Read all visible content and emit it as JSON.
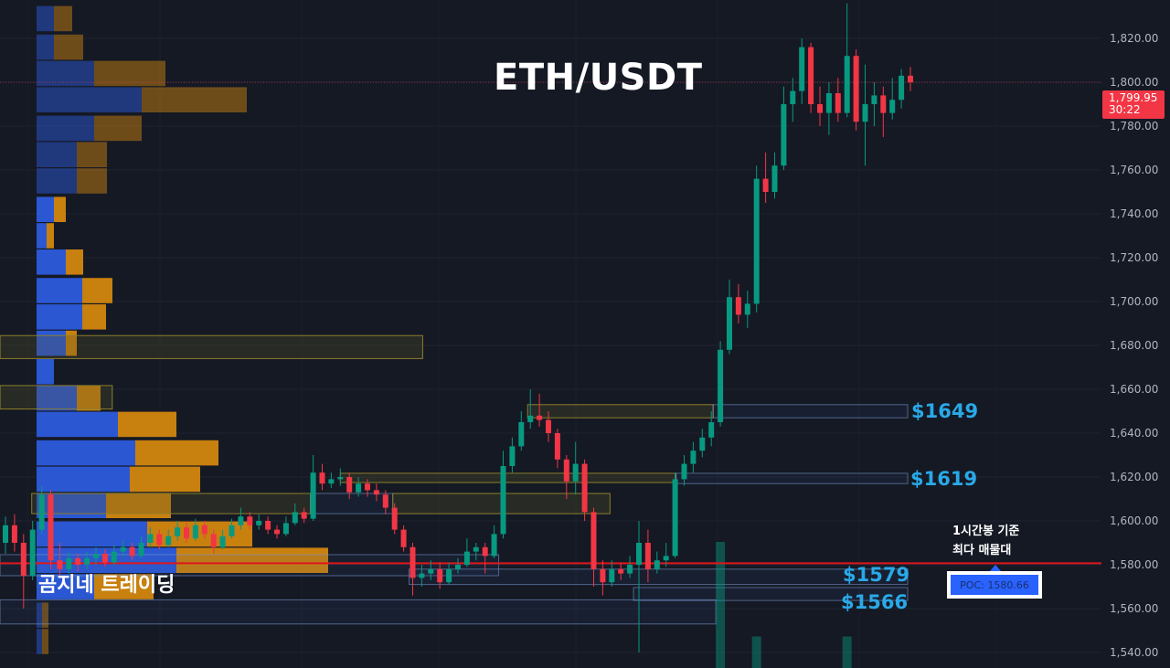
{
  "title": "ETH/USDT",
  "watermark": "곰지네 트레이딩",
  "note": {
    "line1": "1시간봉 기준",
    "line2": "최다 매물대"
  },
  "poc": {
    "label": "POC: 1580.66",
    "price": 1580.66
  },
  "current": {
    "price_label": "1,799.95",
    "countdown": "30:22",
    "price": 1799.95
  },
  "levels": {
    "l1649": "$1649",
    "l1619": "$1619",
    "l1579": "$1579",
    "l1566": "$1566"
  },
  "colors": {
    "up": "#089981",
    "down": "#f23645",
    "poc": "#e0161b",
    "level_text": "#29a9e8",
    "profile_buy": "#2b57d3",
    "profile_sell": "#c8800f",
    "background": "#151924"
  },
  "chart_data": {
    "type": "candlestick",
    "title": "ETH/USDT",
    "ylim": [
      1533,
      1838
    ],
    "y_ticks": [
      "1,540.00",
      "1,560.00",
      "1,580.00",
      "1,600.00",
      "1,620.00",
      "1,640.00",
      "1,660.00",
      "1,680.00",
      "1,700.00",
      "1,720.00",
      "1,740.00",
      "1,760.00",
      "1,780.00",
      "1,800.00",
      "1,820.00"
    ],
    "y_tick_values": [
      1540,
      1560,
      1580,
      1600,
      1620,
      1640,
      1660,
      1680,
      1700,
      1720,
      1740,
      1760,
      1780,
      1800,
      1820
    ],
    "grid": true,
    "ohlc": [
      [
        1590,
        1602,
        1585,
        1598
      ],
      [
        1598,
        1603,
        1586,
        1590
      ],
      [
        1590,
        1594,
        1560,
        1575
      ],
      [
        1575,
        1600,
        1573,
        1596
      ],
      [
        1596,
        1616,
        1594,
        1612
      ],
      [
        1612,
        1614,
        1578,
        1582
      ],
      [
        1582,
        1590,
        1575,
        1578
      ],
      [
        1578,
        1586,
        1576,
        1583
      ],
      [
        1583,
        1585,
        1577,
        1580
      ],
      [
        1580,
        1586,
        1578,
        1583
      ],
      [
        1583,
        1588,
        1580,
        1585
      ],
      [
        1585,
        1587,
        1579,
        1581
      ],
      [
        1581,
        1589,
        1580,
        1586
      ],
      [
        1586,
        1591,
        1584,
        1588
      ],
      [
        1588,
        1590,
        1582,
        1584
      ],
      [
        1584,
        1593,
        1583,
        1590
      ],
      [
        1590,
        1597,
        1588,
        1594
      ],
      [
        1594,
        1596,
        1587,
        1589
      ],
      [
        1589,
        1596,
        1588,
        1593
      ],
      [
        1593,
        1600,
        1591,
        1597
      ],
      [
        1597,
        1599,
        1590,
        1592
      ],
      [
        1592,
        1601,
        1591,
        1598
      ],
      [
        1598,
        1600,
        1592,
        1594
      ],
      [
        1594,
        1596,
        1585,
        1588
      ],
      [
        1588,
        1596,
        1587,
        1593
      ],
      [
        1593,
        1601,
        1592,
        1598
      ],
      [
        1598,
        1606,
        1596,
        1602
      ],
      [
        1602,
        1604,
        1596,
        1598
      ],
      [
        1598,
        1603,
        1596,
        1600
      ],
      [
        1600,
        1602,
        1594,
        1596
      ],
      [
        1596,
        1598,
        1592,
        1594
      ],
      [
        1594,
        1602,
        1593,
        1599
      ],
      [
        1599,
        1608,
        1598,
        1604
      ],
      [
        1604,
        1606,
        1599,
        1601
      ],
      [
        1601,
        1630,
        1600,
        1622
      ],
      [
        1622,
        1626,
        1614,
        1617
      ],
      [
        1617,
        1622,
        1615,
        1619
      ],
      [
        1619,
        1624,
        1616,
        1620
      ],
      [
        1620,
        1622,
        1610,
        1613
      ],
      [
        1613,
        1620,
        1611,
        1617
      ],
      [
        1617,
        1619,
        1611,
        1614
      ],
      [
        1614,
        1617,
        1609,
        1612
      ],
      [
        1612,
        1614,
        1603,
        1606
      ],
      [
        1606,
        1608,
        1594,
        1596
      ],
      [
        1596,
        1598,
        1586,
        1588
      ],
      [
        1588,
        1590,
        1566,
        1574
      ],
      [
        1574,
        1580,
        1570,
        1576
      ],
      [
        1576,
        1582,
        1573,
        1578
      ],
      [
        1578,
        1581,
        1569,
        1572
      ],
      [
        1572,
        1581,
        1571,
        1578
      ],
      [
        1578,
        1583,
        1576,
        1580
      ],
      [
        1580,
        1592,
        1579,
        1586
      ],
      [
        1586,
        1590,
        1582,
        1588
      ],
      [
        1588,
        1590,
        1576,
        1584
      ],
      [
        1584,
        1598,
        1583,
        1594
      ],
      [
        1594,
        1632,
        1592,
        1625
      ],
      [
        1625,
        1638,
        1622,
        1634
      ],
      [
        1634,
        1650,
        1632,
        1645
      ],
      [
        1645,
        1660,
        1642,
        1648
      ],
      [
        1648,
        1658,
        1643,
        1646
      ],
      [
        1646,
        1650,
        1636,
        1640
      ],
      [
        1640,
        1642,
        1624,
        1628
      ],
      [
        1628,
        1630,
        1610,
        1618
      ],
      [
        1618,
        1636,
        1612,
        1626
      ],
      [
        1626,
        1628,
        1600,
        1604
      ],
      [
        1604,
        1606,
        1570,
        1578
      ],
      [
        1578,
        1582,
        1566,
        1572
      ],
      [
        1572,
        1582,
        1570,
        1578
      ],
      [
        1578,
        1581,
        1573,
        1576
      ],
      [
        1576,
        1584,
        1574,
        1580
      ],
      [
        1580,
        1600,
        1540,
        1590
      ],
      [
        1590,
        1596,
        1572,
        1578
      ],
      [
        1578,
        1586,
        1576,
        1582
      ],
      [
        1582,
        1590,
        1579,
        1584
      ],
      [
        1584,
        1622,
        1583,
        1619
      ],
      [
        1619,
        1630,
        1616,
        1626
      ],
      [
        1626,
        1636,
        1622,
        1632
      ],
      [
        1632,
        1642,
        1629,
        1638
      ],
      [
        1638,
        1650,
        1634,
        1645
      ],
      [
        1645,
        1682,
        1643,
        1678
      ],
      [
        1678,
        1710,
        1676,
        1702
      ],
      [
        1702,
        1708,
        1690,
        1694
      ],
      [
        1694,
        1705,
        1688,
        1699
      ],
      [
        1699,
        1762,
        1695,
        1756
      ],
      [
        1756,
        1768,
        1745,
        1750
      ],
      [
        1750,
        1768,
        1747,
        1762
      ],
      [
        1762,
        1798,
        1760,
        1790
      ],
      [
        1790,
        1802,
        1782,
        1796
      ],
      [
        1796,
        1820,
        1790,
        1816
      ],
      [
        1816,
        1818,
        1786,
        1790
      ],
      [
        1790,
        1798,
        1780,
        1786
      ],
      [
        1786,
        1800,
        1776,
        1795
      ],
      [
        1795,
        1802,
        1782,
        1786
      ],
      [
        1786,
        1836,
        1784,
        1812
      ],
      [
        1812,
        1815,
        1778,
        1782
      ],
      [
        1782,
        1808,
        1762,
        1790
      ],
      [
        1790,
        1800,
        1780,
        1794
      ],
      [
        1794,
        1798,
        1775,
        1786
      ],
      [
        1786,
        1802,
        1783,
        1792
      ],
      [
        1792,
        1806,
        1788,
        1803
      ],
      [
        1803,
        1807,
        1796,
        1799.95
      ]
    ],
    "volume": [
      {
        "index": 79,
        "value": 1.0
      },
      {
        "index": 83,
        "value": 0.25
      },
      {
        "index": 93,
        "value": 0.25
      }
    ],
    "volume_profile": [
      {
        "price": 1829,
        "buy": 19,
        "sell": 20,
        "active": false
      },
      {
        "price": 1816,
        "buy": 19,
        "sell": 32,
        "active": false
      },
      {
        "price": 1804,
        "buy": 63,
        "sell": 78,
        "active": false
      },
      {
        "price": 1792,
        "buy": 115,
        "sell": 115,
        "active": false
      },
      {
        "price": 1779,
        "buy": 63,
        "sell": 52,
        "active": false
      },
      {
        "price": 1767,
        "buy": 44,
        "sell": 33,
        "active": false
      },
      {
        "price": 1755,
        "buy": 44,
        "sell": 33,
        "active": false
      },
      {
        "price": 1742,
        "buy": 19,
        "sell": 13,
        "active": true
      },
      {
        "price": 1730,
        "buy": 11,
        "sell": 8,
        "active": true
      },
      {
        "price": 1718,
        "buy": 32,
        "sell": 19,
        "active": true
      },
      {
        "price": 1705,
        "buy": 50,
        "sell": 33,
        "active": true
      },
      {
        "price": 1693,
        "buy": 50,
        "sell": 26,
        "active": true
      },
      {
        "price": 1681,
        "buy": 32,
        "sell": 12,
        "active": true
      },
      {
        "price": 1668,
        "buy": 19,
        "sell": 0,
        "active": true
      },
      {
        "price": 1656,
        "buy": 44,
        "sell": 26,
        "active": true
      },
      {
        "price": 1644,
        "buy": 89,
        "sell": 64,
        "active": true
      },
      {
        "price": 1631,
        "buy": 108,
        "sell": 91,
        "active": true
      },
      {
        "price": 1619,
        "buy": 102,
        "sell": 77,
        "active": true
      },
      {
        "price": 1607,
        "buy": 76,
        "sell": 71,
        "active": true
      },
      {
        "price": 1594,
        "buy": 121,
        "sell": 115,
        "active": true
      },
      {
        "price": 1582,
        "buy": 153,
        "sell": 166,
        "active": true
      },
      {
        "price": 1570,
        "buy": 63,
        "sell": 65,
        "active": true
      },
      {
        "price": 1557,
        "buy": 6,
        "sell": 7,
        "active": false
      },
      {
        "price": 1545,
        "buy": 6,
        "sell": 7,
        "active": false
      }
    ],
    "zones": [
      {
        "kind": "supply",
        "from": -0.6,
        "to": 46.1,
        "top": 1684.5,
        "bottom": 1674
      },
      {
        "kind": "supply",
        "from": -0.6,
        "to": 11.8,
        "top": 1661.7,
        "bottom": 1651
      },
      {
        "kind": "supply",
        "from": 57.7,
        "to": 78.2,
        "top": 1653,
        "bottom": 1647
      },
      {
        "kind": "level",
        "from": 78.2,
        "to": 99.7,
        "top": 1653,
        "bottom": 1647
      },
      {
        "kind": "supply",
        "from": 37,
        "to": 74.1,
        "top": 1621.7,
        "bottom": 1617.5
      },
      {
        "kind": "level",
        "from": 74.1,
        "to": 99.7,
        "top": 1621.7,
        "bottom": 1617
      },
      {
        "kind": "supply",
        "from": 2.9,
        "to": 33.7,
        "top": 1612.5,
        "bottom": 1603.3
      },
      {
        "kind": "level",
        "from": 33.7,
        "to": 42.8,
        "top": 1612.5,
        "bottom": 1603.3
      },
      {
        "kind": "supply",
        "from": 42.8,
        "to": 66.8,
        "top": 1612.5,
        "bottom": 1603.3
      },
      {
        "kind": "level",
        "from": -0.6,
        "to": 54.5,
        "top": 1584.6,
        "bottom": 1575
      },
      {
        "kind": "level",
        "from": 44.6,
        "to": 99.7,
        "top": 1578,
        "bottom": 1571
      },
      {
        "kind": "level",
        "from": 69.4,
        "to": 99.7,
        "top": 1569.6,
        "bottom": 1563.7
      },
      {
        "kind": "level",
        "from": -0.6,
        "to": 78.5,
        "top": 1564,
        "bottom": 1553
      }
    ]
  }
}
